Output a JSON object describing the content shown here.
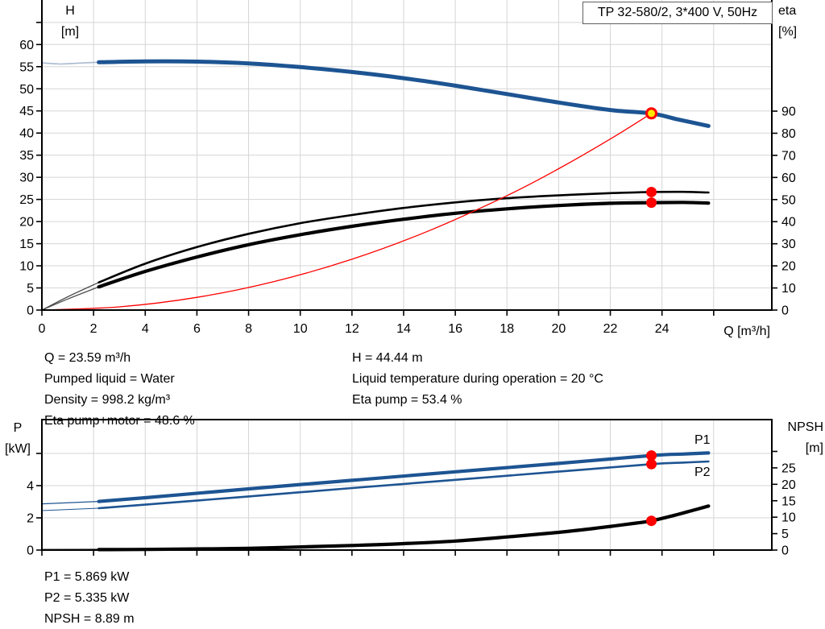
{
  "title_box": {
    "label": "TP 32-580/2, 3*400 V, 50Hz"
  },
  "axis_labels": {
    "top_left": [
      "H",
      "[m]"
    ],
    "top_right": [
      "eta",
      "[%]"
    ],
    "x": "Q [m³/h]",
    "bottom_left": [
      "P",
      "[kW]"
    ],
    "bottom_right": [
      "NPSH",
      "[m]"
    ]
  },
  "annotations": {
    "mid_left": [
      "Q = 23.59 m³/h",
      "Pumped liquid = Water",
      "Density = 998.2 kg/m³",
      "Eta pump+motor = 48.6 %"
    ],
    "mid_right": [
      "H = 44.44 m",
      "Liquid temperature during operation = 20 °C",
      "Eta pump = 53.4 %"
    ],
    "bottom": [
      "P1 = 5.869 kW",
      "P2 = 5.335 kW",
      "NPSH = 8.89 m"
    ]
  },
  "operating_point": {
    "q_m3h": 23.59,
    "h_m": 44.44,
    "eta_pump_pct": 53.4,
    "eta_pump_motor_pct": 48.6,
    "p1_kw": 5.869,
    "p2_kw": 5.335,
    "npsh_m": 8.89
  },
  "colors": {
    "curve_blue": "#1d5492",
    "pale_blue": "#a9b9d0",
    "curve_black": "#000000",
    "thin_gray": "#4d4d4d",
    "system_red": "#fe0000",
    "marker_red": "#fe0000",
    "marker_yellow": "#ffe900",
    "grid": "#d5d5d5",
    "axis": "#000000"
  },
  "chart_data": [
    {
      "type": "line",
      "title": "TP 32-580/2, 3*400 V, 50Hz",
      "grid": true,
      "x_axis": {
        "label": "Q [m³/h]",
        "range": [
          0,
          28.3
        ],
        "tick_step": 2,
        "labeled_ticks": [
          0,
          2,
          4,
          6,
          8,
          10,
          12,
          14,
          16,
          18,
          20,
          22,
          24
        ],
        "unlabeled_ticks": [
          26
        ]
      },
      "y_left_axis": {
        "label": "H [m]",
        "range": [
          0,
          70
        ],
        "labeled_ticks": [
          0,
          5,
          10,
          15,
          20,
          25,
          30,
          35,
          40,
          45,
          50,
          55,
          60
        ],
        "unlabeled_ticks": [
          65
        ]
      },
      "y_right_axis": {
        "label": "eta [%]",
        "range": [
          0,
          140
        ],
        "labeled_ticks": [
          0,
          10,
          20,
          30,
          40,
          50,
          60,
          70,
          80,
          90
        ],
        "unlabeled_ticks": []
      },
      "series": [
        {
          "name": "eta-pump-curve",
          "label": null,
          "axis": "eta",
          "color": "#000000",
          "width": 2.6,
          "thin_color": "#4d4d4d",
          "thin_width": 1.3,
          "split_q": 2.2,
          "points": [
            [
              0,
              0
            ],
            [
              1,
              6
            ],
            [
              2.2,
              12.5
            ],
            [
              4,
              21
            ],
            [
              6,
              28.5
            ],
            [
              8,
              34.5
            ],
            [
              10,
              39.3
            ],
            [
              12,
              43
            ],
            [
              14,
              46.2
            ],
            [
              16,
              48.7
            ],
            [
              18,
              50.6
            ],
            [
              20,
              51.9
            ],
            [
              22,
              52.9
            ],
            [
              23.59,
              53.4
            ],
            [
              24.8,
              53.5
            ],
            [
              25.8,
              53.2
            ]
          ]
        },
        {
          "name": "eta-pump-motor-curve",
          "label": null,
          "axis": "eta",
          "color": "#000000",
          "width": 4.2,
          "thin_color": "#4d4d4d",
          "thin_width": 1.3,
          "split_q": 2.2,
          "points": [
            [
              0,
              0
            ],
            [
              1,
              5
            ],
            [
              2.2,
              10.5
            ],
            [
              4,
              17.5
            ],
            [
              6,
              24
            ],
            [
              8,
              29.6
            ],
            [
              10,
              34.1
            ],
            [
              12,
              37.9
            ],
            [
              14,
              41.1
            ],
            [
              16,
              43.8
            ],
            [
              18,
              45.8
            ],
            [
              20,
              47.3
            ],
            [
              22,
              48.3
            ],
            [
              23.59,
              48.6
            ],
            [
              24.8,
              48.7
            ],
            [
              25.8,
              48.4
            ]
          ]
        },
        {
          "name": "system-curve",
          "label": null,
          "axis": "h",
          "color": "#fe0000",
          "width": 1.3,
          "thin_color": null,
          "thin_width": null,
          "split_q": null,
          "points": [
            [
              0,
              0
            ],
            [
              3,
              0.72
            ],
            [
              6,
              2.87
            ],
            [
              9,
              6.46
            ],
            [
              12,
              11.49
            ],
            [
              15,
              17.96
            ],
            [
              18,
              25.86
            ],
            [
              20,
              31.94
            ],
            [
              22,
              38.65
            ],
            [
              23.59,
              44.44
            ]
          ]
        },
        {
          "name": "head-curve",
          "label": null,
          "axis": "h",
          "color": "#1d5492",
          "width": 5,
          "thin_color": "#a9b9d0",
          "thin_width": 1.6,
          "split_q": 2.2,
          "points": [
            [
              0,
              55.85
            ],
            [
              0.7,
              55.6
            ],
            [
              1.4,
              55.8
            ],
            [
              2.2,
              56.0
            ],
            [
              4,
              56.2
            ],
            [
              6,
              56.15
            ],
            [
              8,
              55.75
            ],
            [
              10,
              54.9
            ],
            [
              12,
              53.8
            ],
            [
              14,
              52.4
            ],
            [
              16,
              50.7
            ],
            [
              18,
              48.8
            ],
            [
              20,
              46.9
            ],
            [
              22,
              45.2
            ],
            [
              23.59,
              44.44
            ],
            [
              24.6,
              43.1
            ],
            [
              25.8,
              41.6
            ]
          ]
        }
      ],
      "markers": [
        {
          "name": "eta-pump-operating-dot",
          "type": "dot",
          "axis": "eta",
          "q": 23.59,
          "value": 53.4
        },
        {
          "name": "eta-pump-motor-operating-dot",
          "type": "dot",
          "axis": "eta",
          "q": 23.59,
          "value": 48.6
        },
        {
          "name": "duty-point-marker",
          "type": "ring",
          "axis": "h",
          "q": 23.59,
          "value": 44.44
        }
      ]
    },
    {
      "type": "line",
      "title": "",
      "grid": true,
      "x_axis": {
        "label": "",
        "range": [
          0,
          28.3
        ],
        "tick_step": 2,
        "labeled_ticks": [],
        "unlabeled_ticks": [
          0,
          2,
          4,
          6,
          8,
          10,
          12,
          14,
          16,
          18,
          20,
          22,
          24,
          26
        ]
      },
      "y_left_axis": {
        "label": "P [kW]",
        "range": [
          0,
          8.1
        ],
        "labeled_ticks": [
          0,
          2,
          4
        ],
        "unlabeled_ticks": [
          6
        ]
      },
      "y_right_axis": {
        "label": "NPSH [m]",
        "range": [
          0,
          39.7
        ],
        "labeled_ticks": [
          0,
          5,
          10,
          15,
          20,
          25
        ],
        "unlabeled_ticks": [
          30
        ]
      },
      "series": [
        {
          "name": "npsh-curve",
          "label": null,
          "axis": "npsh",
          "color": "#000000",
          "width": 4.2,
          "thin_color": "#000000",
          "thin_width": 1.8,
          "split_q": 2.2,
          "points": [
            [
              0,
              0.12
            ],
            [
              2.2,
              0.14
            ],
            [
              4,
              0.2
            ],
            [
              8,
              0.55
            ],
            [
              12,
              1.4
            ],
            [
              14,
              1.95
            ],
            [
              16,
              2.75
            ],
            [
              18,
              4.0
            ],
            [
              20,
              5.4
            ],
            [
              21.5,
              6.7
            ],
            [
              23,
              8.2
            ],
            [
              23.59,
              8.89
            ],
            [
              24.5,
              10.6
            ],
            [
              25.2,
              12.1
            ],
            [
              25.8,
              13.4
            ]
          ]
        },
        {
          "name": "p2-curve",
          "label": "P2",
          "axis": "p",
          "color": "#1d5492",
          "width": 2.6,
          "thin_color": "#1d5492",
          "thin_width": 1.1,
          "split_q": 2.2,
          "points": [
            [
              0,
              2.45
            ],
            [
              2.2,
              2.6
            ],
            [
              4,
              2.82
            ],
            [
              8,
              3.33
            ],
            [
              12,
              3.85
            ],
            [
              16,
              4.36
            ],
            [
              20,
              4.87
            ],
            [
              23.59,
              5.335
            ],
            [
              24.8,
              5.43
            ],
            [
              25.8,
              5.5
            ]
          ]
        },
        {
          "name": "p1-curve",
          "label": "P1",
          "axis": "p",
          "color": "#1d5492",
          "width": 4.2,
          "thin_color": "#1d5492",
          "thin_width": 1.3,
          "split_q": 2.2,
          "points": [
            [
              0,
              2.87
            ],
            [
              2.2,
              3.02
            ],
            [
              4,
              3.25
            ],
            [
              8,
              3.8
            ],
            [
              12,
              4.33
            ],
            [
              16,
              4.86
            ],
            [
              20,
              5.38
            ],
            [
              23.59,
              5.869
            ],
            [
              24.8,
              5.96
            ],
            [
              25.8,
              6.03
            ]
          ]
        }
      ],
      "markers": [
        {
          "name": "p1-operating-dot",
          "type": "dot",
          "axis": "p",
          "q": 23.59,
          "value": 5.869
        },
        {
          "name": "p2-operating-dot",
          "type": "dot",
          "axis": "p",
          "q": 23.59,
          "value": 5.335
        },
        {
          "name": "npsh-operating-dot",
          "type": "dot",
          "axis": "npsh",
          "q": 23.59,
          "value": 8.89
        }
      ]
    }
  ]
}
